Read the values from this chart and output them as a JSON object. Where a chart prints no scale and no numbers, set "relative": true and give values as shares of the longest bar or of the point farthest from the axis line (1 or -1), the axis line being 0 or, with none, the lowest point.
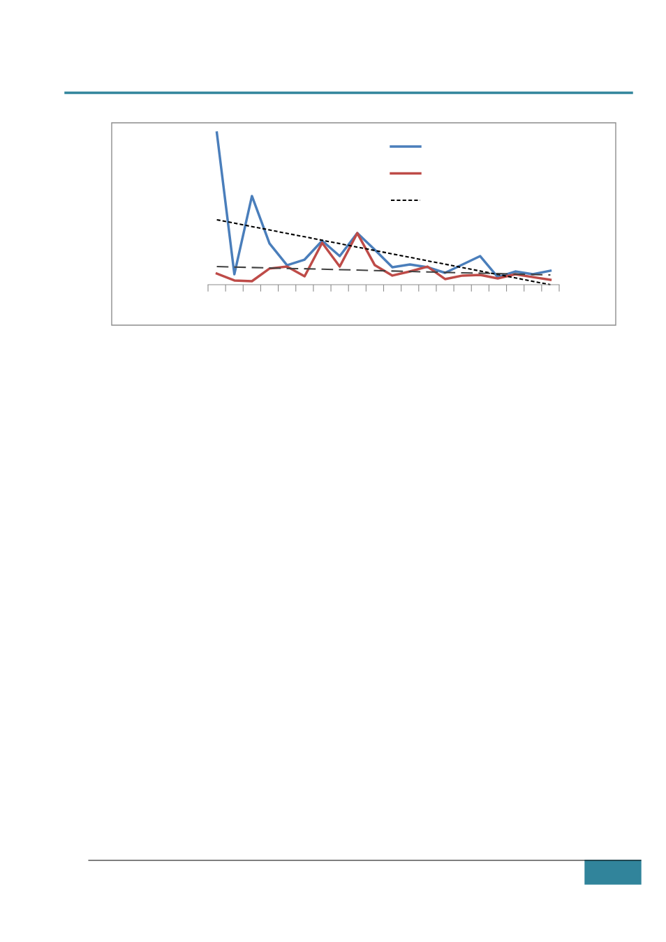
{
  "chart_data": {
    "type": "line",
    "relative": true,
    "categories": [
      null,
      null,
      null,
      null,
      null,
      null,
      null,
      null,
      null,
      null,
      null,
      null,
      null,
      null,
      null,
      null,
      null,
      null,
      null,
      null
    ],
    "grid": false,
    "series": [
      {
        "color": "#4a7ebb",
        "values": [
          1,
          0.069,
          0.583,
          0.271,
          0.128,
          0.165,
          0.289,
          0.188,
          0.339,
          0.229,
          0.115,
          0.133,
          0.115,
          0.078,
          0.133,
          0.188,
          0.05,
          0.087,
          0.069,
          0.092
        ]
      },
      {
        "color": "#be4b48",
        "values": [
          0.073,
          0.028,
          0.023,
          0.106,
          0.119,
          0.055,
          0.275,
          0.119,
          0.339,
          0.128,
          0.06,
          0.087,
          0.119,
          0.037,
          0.06,
          0.064,
          0.041,
          0.069,
          0.05,
          0.032
        ]
      },
      {
        "color": "#000000",
        "line_style": "dotted",
        "values": [
          0.427,
          0.405,
          0.382,
          0.36,
          0.337,
          0.315,
          0.292,
          0.27,
          0.247,
          0.225,
          0.202,
          0.18,
          0.157,
          0.135,
          0.112,
          0.09,
          0.067,
          0.045,
          0.022,
          0
        ]
      },
      {
        "color": "#404040",
        "line_style": "dashed",
        "values": [
          0.119,
          0.116,
          0.113,
          0.11,
          0.107,
          0.105,
          0.102,
          0.099,
          0.096,
          0.093,
          0.09,
          0.087,
          0.084,
          0.081,
          0.078,
          0.076,
          0.073,
          0.07,
          0.067,
          0.064
        ]
      }
    ]
  }
}
